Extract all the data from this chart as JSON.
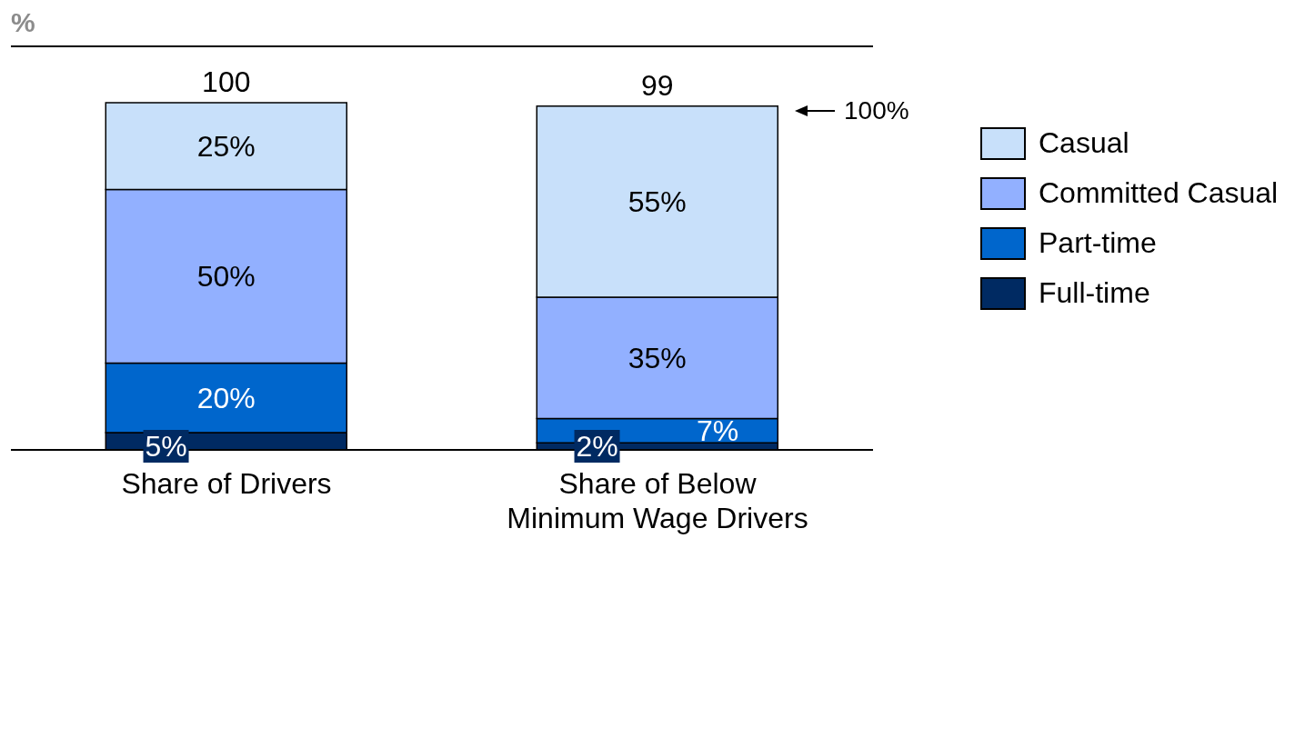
{
  "chart_data": {
    "type": "bar",
    "stacked": true,
    "ylabel": "%",
    "categories": [
      "Share of Drivers",
      "Share of Below Minimum Wage Drivers"
    ],
    "series": [
      {
        "name": "Full-time",
        "color": "#002a62",
        "values": [
          5,
          2
        ],
        "value_labels": [
          "5%",
          "2%"
        ]
      },
      {
        "name": "Part-time",
        "color": "#0066cc",
        "values": [
          20,
          7
        ],
        "value_labels": [
          "20%",
          "7%"
        ]
      },
      {
        "name": "Committed Casual",
        "color": "#92b0ff",
        "values": [
          50,
          35
        ],
        "value_labels": [
          "50%",
          "35%"
        ]
      },
      {
        "name": "Casual",
        "color": "#c8e0fa",
        "values": [
          25,
          55
        ],
        "value_labels": [
          "25%",
          "55%"
        ]
      }
    ],
    "totals": [
      "100",
      "99"
    ],
    "annotations": [
      "100%"
    ],
    "legend": "right",
    "grid": false
  }
}
